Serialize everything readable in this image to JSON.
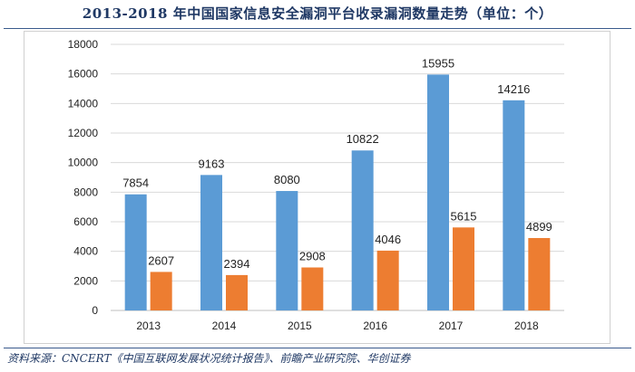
{
  "chart_data": {
    "type": "bar",
    "title": "2013-2018 年中国国家信息安全漏洞平台收录漏洞数量走势（单位：个）",
    "categories": [
      "2013",
      "2014",
      "2015",
      "2016",
      "2017",
      "2018"
    ],
    "series": [
      {
        "values": [
          7854,
          9163,
          8080,
          10822,
          15955,
          14216
        ],
        "color": "#5b9bd5"
      },
      {
        "values": [
          2607,
          2394,
          2908,
          4046,
          5615,
          4899
        ],
        "color": "#ed7d31"
      }
    ],
    "ylim": [
      0,
      18000
    ],
    "yticks": [
      "0",
      "2000",
      "4000",
      "6000",
      "8000",
      "10000",
      "12000",
      "14000",
      "16000",
      "18000"
    ],
    "grid": true,
    "xlabel": "",
    "ylabel": ""
  },
  "source": "资料来源：CNCERT《中国互联网发展状况统计报告》、前瞻产业研究院、华创证券"
}
